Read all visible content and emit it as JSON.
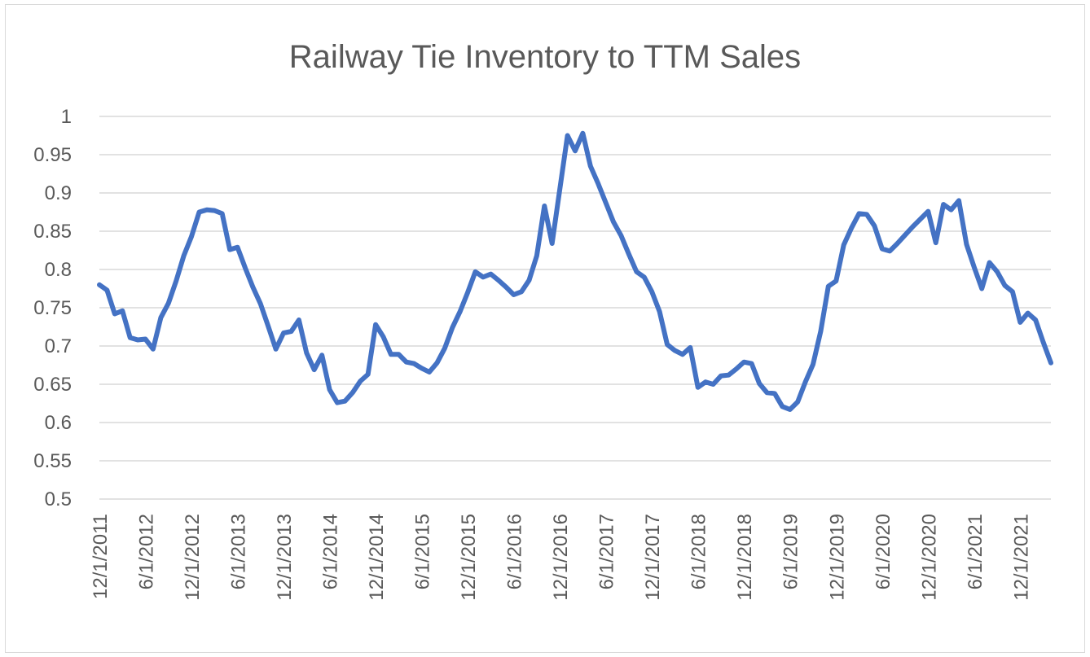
{
  "chart_data": {
    "type": "line",
    "title": "Railway Tie Inventory to TTM Sales",
    "xlabel": "",
    "ylabel": "",
    "ylim": [
      0.5,
      1
    ],
    "y_ticks": [
      "0.5",
      "0.55",
      "0.6",
      "0.65",
      "0.7",
      "0.75",
      "0.8",
      "0.85",
      "0.9",
      "0.95",
      "1"
    ],
    "x_tick_labels": [
      "12/1/2011",
      "6/1/2012",
      "12/1/2012",
      "6/1/2013",
      "12/1/2013",
      "6/1/2014",
      "12/1/2014",
      "6/1/2015",
      "12/1/2015",
      "6/1/2016",
      "12/1/2016",
      "6/1/2017",
      "12/1/2017",
      "6/1/2018",
      "12/1/2018",
      "6/1/2019",
      "12/1/2019",
      "6/1/2020",
      "12/1/2020",
      "6/1/2021",
      "12/1/2021"
    ],
    "x_start": "12/1/2011",
    "x_end": "5/1/2022",
    "grid": true,
    "legend": "none",
    "series": [
      {
        "color": "#4472C4",
        "values": [
          0.78,
          0.773,
          0.742,
          0.746,
          0.711,
          0.708,
          0.709,
          0.696,
          0.737,
          0.756,
          0.785,
          0.818,
          0.843,
          0.875,
          0.878,
          0.877,
          0.873,
          0.826,
          0.829,
          0.802,
          0.777,
          0.755,
          0.726,
          0.696,
          0.717,
          0.719,
          0.734,
          0.691,
          0.669,
          0.688,
          0.643,
          0.626,
          0.628,
          0.639,
          0.654,
          0.663,
          0.728,
          0.712,
          0.689,
          0.689,
          0.679,
          0.677,
          0.671,
          0.666,
          0.678,
          0.697,
          0.724,
          0.745,
          0.77,
          0.797,
          0.79,
          0.794,
          0.786,
          0.777,
          0.767,
          0.771,
          0.786,
          0.818,
          0.883,
          0.834,
          0.905,
          0.975,
          0.955,
          0.978,
          0.935,
          0.912,
          0.887,
          0.862,
          0.844,
          0.82,
          0.797,
          0.79,
          0.771,
          0.745,
          0.702,
          0.694,
          0.689,
          0.698,
          0.646,
          0.653,
          0.65,
          0.661,
          0.662,
          0.67,
          0.679,
          0.677,
          0.651,
          0.639,
          0.638,
          0.621,
          0.617,
          0.627,
          0.653,
          0.676,
          0.719,
          0.778,
          0.785,
          0.832,
          0.854,
          0.873,
          0.872,
          0.857,
          0.827,
          0.824,
          0.834,
          0.845,
          0.856,
          0.866,
          0.876,
          0.835,
          0.885,
          0.878,
          0.89,
          0.833,
          0.803,
          0.775,
          0.809,
          0.797,
          0.779,
          0.771,
          0.731,
          0.743,
          0.734,
          0.705,
          0.678
        ]
      }
    ]
  }
}
